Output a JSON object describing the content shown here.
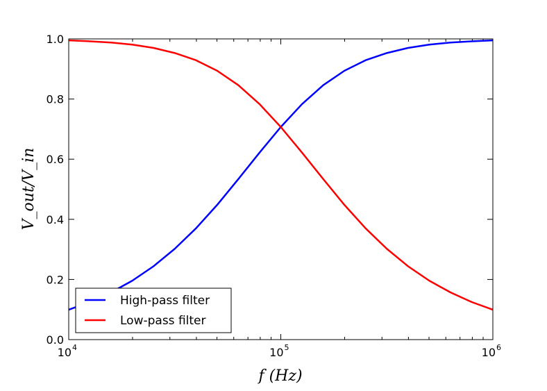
{
  "chart_data": {
    "type": "line",
    "title": "",
    "xlabel": "f (Hz)",
    "ylabel": "V_out/V_in",
    "xscale": "log",
    "xlim": [
      10000,
      1000000
    ],
    "ylim": [
      0.0,
      1.0
    ],
    "grid": false,
    "legend_position": "bottom-left",
    "x_ticks": [
      {
        "value": 10000,
        "base": "10",
        "exp": "4"
      },
      {
        "value": 100000,
        "base": "10",
        "exp": "5"
      },
      {
        "value": 1000000,
        "base": "10",
        "exp": "6"
      }
    ],
    "y_ticks": [
      "0.0",
      "0.2",
      "0.4",
      "0.6",
      "0.8",
      "1.0"
    ],
    "x": [
      10000,
      12589,
      15849,
      19953,
      25119,
      31623,
      39811,
      50119,
      63096,
      79433,
      100000,
      125893,
      158489,
      199526,
      251189,
      316228,
      398107,
      501187,
      630957,
      794328,
      1000000
    ],
    "series": [
      {
        "name": "High-pass filter",
        "color": "#0000ff",
        "values": [
          0.0995,
          0.125,
          0.157,
          0.196,
          0.244,
          0.302,
          0.37,
          0.448,
          0.534,
          0.622,
          0.707,
          0.783,
          0.846,
          0.894,
          0.929,
          0.953,
          0.97,
          0.981,
          0.988,
          0.992,
          0.995
        ]
      },
      {
        "name": "Low-pass filter",
        "color": "#ff0000",
        "values": [
          0.995,
          0.992,
          0.988,
          0.981,
          0.97,
          0.953,
          0.929,
          0.894,
          0.846,
          0.783,
          0.707,
          0.622,
          0.534,
          0.448,
          0.37,
          0.302,
          0.244,
          0.196,
          0.157,
          0.125,
          0.0995
        ]
      }
    ]
  }
}
